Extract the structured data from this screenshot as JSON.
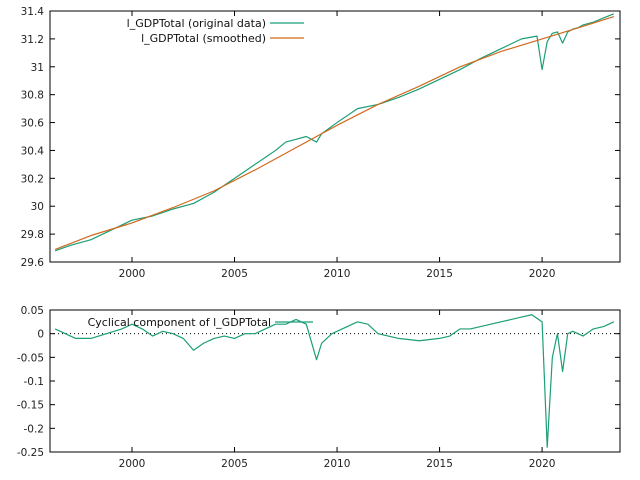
{
  "colors": {
    "original": "#1b9e77",
    "smoothed": "#d2691e",
    "cycle": "#1b9e77",
    "axis": "#000000"
  },
  "chart_data": [
    {
      "type": "line",
      "title": "",
      "xlabel": "",
      "ylabel": "",
      "xlim": [
        1996,
        2023.8
      ],
      "ylim": [
        29.6,
        31.4
      ],
      "xticks": [
        2000,
        2005,
        2010,
        2015,
        2020
      ],
      "yticks": [
        29.6,
        29.8,
        30,
        30.2,
        30.4,
        30.6,
        30.8,
        31,
        31.2,
        31.4
      ],
      "ytick_labels": [
        "29.6",
        "29.8",
        "30",
        "30.2",
        "30.4",
        "30.6",
        "30.8",
        "31",
        "31.2",
        "31.4"
      ],
      "grid": false,
      "legend": "top-left",
      "series": [
        {
          "name": "l_GDPTotal (original data)",
          "x": [
            1996.25,
            1997,
            1998,
            1999,
            2000,
            2001,
            2002,
            2003,
            2004,
            2005,
            2006,
            2007,
            2007.5,
            2008,
            2008.5,
            2009,
            2009.25,
            2010,
            2011,
            2012,
            2013,
            2014,
            2015,
            2016,
            2017,
            2018,
            2019,
            2019.75,
            2020,
            2020.25,
            2020.5,
            2020.75,
            2021,
            2021.25,
            2021.5,
            2021.75,
            2022,
            2022.5,
            2023,
            2023.5
          ],
          "y": [
            29.68,
            29.72,
            29.76,
            29.83,
            29.9,
            29.93,
            29.98,
            30.02,
            30.1,
            30.2,
            30.3,
            30.4,
            30.46,
            30.48,
            30.5,
            30.46,
            30.52,
            30.6,
            30.7,
            30.73,
            30.78,
            30.84,
            30.91,
            30.98,
            31.06,
            31.13,
            31.2,
            31.22,
            30.98,
            31.18,
            31.24,
            31.25,
            31.17,
            31.25,
            31.27,
            31.28,
            31.3,
            31.32,
            31.35,
            31.38
          ]
        },
        {
          "name": "l_GDPTotal (smoothed)",
          "x": [
            1996.25,
            1998,
            2000,
            2002,
            2004,
            2006,
            2008,
            2010,
            2012,
            2014,
            2016,
            2018,
            2020,
            2022,
            2023.5
          ],
          "y": [
            29.69,
            29.79,
            29.88,
            29.99,
            30.11,
            30.26,
            30.42,
            30.58,
            30.73,
            30.86,
            31.0,
            31.11,
            31.2,
            31.29,
            31.36
          ]
        }
      ]
    },
    {
      "type": "line",
      "title": "",
      "xlabel": "",
      "ylabel": "",
      "xlim": [
        1996,
        2023.8
      ],
      "ylim": [
        -0.25,
        0.05
      ],
      "xticks": [
        2000,
        2005,
        2010,
        2015,
        2020
      ],
      "yticks": [
        -0.25,
        -0.2,
        -0.15,
        -0.1,
        -0.05,
        0,
        0.05
      ],
      "ytick_labels": [
        "-0.25",
        "-0.2",
        "-0.15",
        "-0.1",
        "-0.05",
        "0",
        "0.05"
      ],
      "zero_line": true,
      "grid": false,
      "legend": "top-left",
      "series": [
        {
          "name": "Cyclical component of l_GDPTotal",
          "x": [
            1996.25,
            1996.75,
            1997.25,
            1998,
            1998.75,
            1999.5,
            2000,
            2000.5,
            2001,
            2001.5,
            2002,
            2002.5,
            2003,
            2003.5,
            2004,
            2004.5,
            2005,
            2005.5,
            2006,
            2006.5,
            2007,
            2007.5,
            2008,
            2008.5,
            2009,
            2009.25,
            2009.75,
            2010.5,
            2011,
            2011.5,
            2012,
            2013,
            2014,
            2015,
            2015.5,
            2016,
            2016.5,
            2017,
            2017.5,
            2018,
            2018.5,
            2019,
            2019.5,
            2020,
            2020.25,
            2020.5,
            2020.75,
            2021,
            2021.25,
            2021.5,
            2022,
            2022.5,
            2023,
            2023.5
          ],
          "y": [
            0.01,
            0.0,
            -0.01,
            -0.01,
            0.0,
            0.01,
            0.02,
            0.01,
            -0.005,
            0.005,
            0.0,
            -0.01,
            -0.035,
            -0.02,
            -0.01,
            -0.005,
            -0.01,
            0.0,
            0.0,
            0.01,
            0.02,
            0.02,
            0.03,
            0.02,
            -0.055,
            -0.02,
            0.0,
            0.015,
            0.025,
            0.02,
            0.0,
            -0.01,
            -0.015,
            -0.01,
            -0.005,
            0.01,
            0.01,
            0.015,
            0.02,
            0.025,
            0.03,
            0.035,
            0.04,
            0.025,
            -0.24,
            -0.05,
            0.0,
            -0.08,
            0.0,
            0.005,
            -0.005,
            0.01,
            0.015,
            0.025
          ]
        }
      ]
    }
  ]
}
